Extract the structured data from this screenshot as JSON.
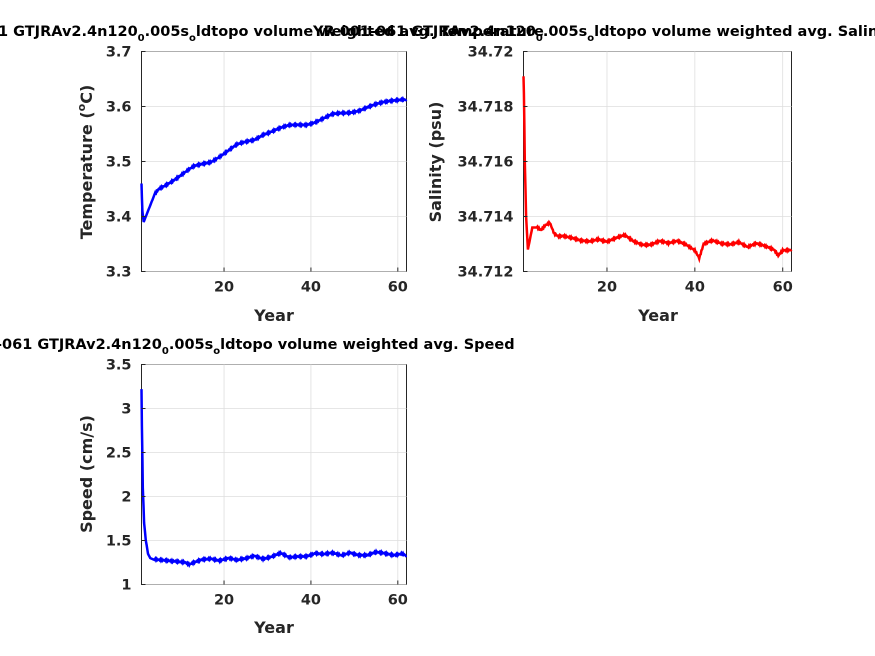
{
  "titles": {
    "temperature": {
      "lead": "1 GTJRAv2.4n120",
      "s1": "0",
      "mid": ".005s",
      "s2": "o",
      "tail": "ldtopo volume weighted avg. Temperature"
    },
    "salinity": {
      "lead": "YR 001-061 GTJRAv2.4n120",
      "s1": "0",
      "mid": ".005s",
      "s2": "o",
      "tail": "ldtopo volume weighted avg. Salinity"
    },
    "speed": {
      "lead": "-061 GTJRAv2.4n120",
      "s1": "0",
      "mid": ".005s",
      "s2": "o",
      "tail": "ldtopo volume weighted avg. Speed"
    }
  },
  "chart_data": [
    {
      "id": "temperature",
      "type": "line",
      "color": "#0000ff",
      "xlabel": "Year",
      "ylabel_lead": "Temperature (",
      "ylabel_sup": "o",
      "ylabel_tail": "C)",
      "xlim": [
        1,
        62
      ],
      "ylim": [
        3.3,
        3.7
      ],
      "xticks": [
        20,
        40,
        60
      ],
      "xtick_labels": [
        "20",
        "40",
        "60"
      ],
      "yticks": [
        3.3,
        3.4,
        3.5,
        3.6,
        3.7
      ],
      "ytick_labels": [
        "3.3",
        "3.4",
        "3.5",
        "3.6",
        "3.7"
      ],
      "grid": true,
      "series": [
        {
          "x": [
            1,
            1.2,
            1.5,
            2,
            3,
            4,
            5,
            7,
            9,
            11,
            13,
            15,
            17,
            19,
            21,
            23,
            25,
            27,
            29,
            31,
            33,
            35,
            37,
            39,
            41,
            43,
            45,
            47,
            49,
            51,
            53,
            55,
            57,
            59,
            61,
            62
          ],
          "y": [
            3.46,
            3.41,
            3.39,
            3.4,
            3.42,
            3.44,
            3.45,
            3.46,
            3.47,
            3.48,
            3.49,
            3.495,
            3.5,
            3.51,
            3.52,
            3.53,
            3.535,
            3.54,
            3.55,
            3.555,
            3.56,
            3.565,
            3.567,
            3.568,
            3.572,
            3.578,
            3.585,
            3.588,
            3.59,
            3.593,
            3.598,
            3.603,
            3.608,
            3.612,
            3.614,
            3.613
          ]
        }
      ]
    },
    {
      "id": "salinity",
      "type": "line",
      "color": "#ff0000",
      "xlabel": "Year",
      "ylabel": "Salinity (psu)",
      "xlim": [
        1,
        62
      ],
      "ylim": [
        34.712,
        34.72
      ],
      "xticks": [
        20,
        40,
        60
      ],
      "xtick_labels": [
        "20",
        "40",
        "60"
      ],
      "yticks": [
        34.712,
        34.714,
        34.716,
        34.718,
        34.72
      ],
      "ytick_labels": [
        "34.712",
        "34.714",
        "34.716",
        "34.718",
        "34.72"
      ],
      "grid": true,
      "series": [
        {
          "x": [
            1,
            1.1,
            1.3,
            1.6,
            2,
            2.5,
            3,
            4,
            5,
            6,
            7,
            8,
            9,
            10,
            12,
            14,
            16,
            18,
            20,
            22,
            24,
            26,
            28,
            30,
            32,
            34,
            36,
            38,
            40,
            41,
            42,
            44,
            46,
            48,
            50,
            52,
            54,
            56,
            58,
            59,
            60,
            62
          ],
          "y": [
            34.7191,
            34.7185,
            34.716,
            34.714,
            34.7128,
            34.7132,
            34.7136,
            34.7136,
            34.7135,
            34.7137,
            34.7138,
            34.7134,
            34.7133,
            34.7133,
            34.7132,
            34.7131,
            34.7131,
            34.7132,
            34.7131,
            34.7132,
            34.7133,
            34.7131,
            34.713,
            34.713,
            34.7131,
            34.713,
            34.7131,
            34.713,
            34.7128,
            34.7125,
            34.713,
            34.7131,
            34.713,
            34.713,
            34.7131,
            34.7129,
            34.713,
            34.7129,
            34.7128,
            34.7126,
            34.7128,
            34.7128
          ]
        }
      ]
    },
    {
      "id": "speed",
      "type": "line",
      "color": "#0000ff",
      "xlabel": "Year",
      "ylabel": "Speed (cm/s)",
      "xlim": [
        1,
        62
      ],
      "ylim": [
        1,
        3.5
      ],
      "xticks": [
        20,
        40,
        60
      ],
      "xtick_labels": [
        "20",
        "40",
        "60"
      ],
      "yticks": [
        1,
        1.5,
        2,
        2.5,
        3,
        3.5
      ],
      "ytick_labels": [
        "1",
        "1.5",
        "2",
        "2.5",
        "3",
        "3.5"
      ],
      "grid": true,
      "series": [
        {
          "x": [
            1,
            1.1,
            1.3,
            1.6,
            2,
            2.5,
            3,
            4,
            5,
            7,
            9,
            11,
            12,
            13,
            15,
            17,
            19,
            21,
            23,
            25,
            27,
            29,
            31,
            33,
            35,
            37,
            39,
            41,
            43,
            45,
            47,
            49,
            51,
            53,
            55,
            57,
            59,
            61,
            62
          ],
          "y": [
            3.22,
            2.8,
            2.1,
            1.7,
            1.5,
            1.35,
            1.3,
            1.28,
            1.28,
            1.28,
            1.27,
            1.25,
            1.22,
            1.24,
            1.28,
            1.3,
            1.28,
            1.3,
            1.27,
            1.29,
            1.33,
            1.3,
            1.32,
            1.35,
            1.3,
            1.32,
            1.33,
            1.36,
            1.34,
            1.35,
            1.33,
            1.37,
            1.34,
            1.33,
            1.36,
            1.35,
            1.34,
            1.36,
            1.33
          ]
        }
      ]
    }
  ]
}
